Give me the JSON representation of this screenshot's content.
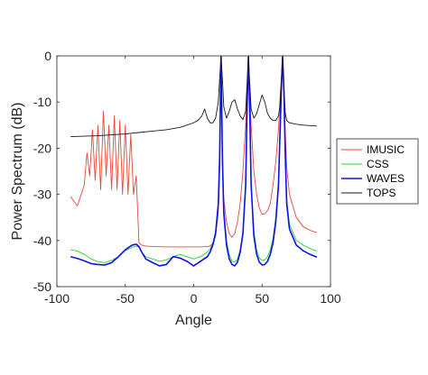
{
  "chart_data": {
    "type": "line",
    "title": "",
    "xlabel": "Angle",
    "ylabel": "Power Spectrum (dB)",
    "xlim": [
      -100,
      100
    ],
    "ylim": [
      -50,
      0
    ],
    "xticks": [
      -100,
      -50,
      0,
      50,
      100
    ],
    "yticks": [
      0,
      -10,
      -20,
      -30,
      -40,
      -50
    ],
    "grid": false,
    "legend_placement": "outside-right",
    "series": [
      {
        "name": "IMUSIC",
        "color": "#e8473a",
        "x": [
          -90,
          -85,
          -80,
          -78,
          -76,
          -74,
          -72,
          -70,
          -68,
          -66,
          -64,
          -62,
          -60,
          -58,
          -56,
          -54,
          -52,
          -50,
          -48,
          -46,
          -44,
          -42,
          -40,
          -38,
          -35,
          -30,
          -20,
          -10,
          0,
          5,
          10,
          12,
          14,
          16,
          18,
          19,
          20,
          21,
          22,
          24,
          26,
          28,
          30,
          32,
          34,
          36,
          38,
          39,
          40,
          41,
          42,
          44,
          46,
          48,
          50,
          52,
          54,
          56,
          58,
          60,
          62,
          63,
          64,
          65,
          66,
          67,
          68,
          70,
          75,
          80,
          85,
          90
        ],
        "y": [
          -30.5,
          -32.5,
          -28,
          -21,
          -26,
          -16,
          -27,
          -15,
          -29,
          -12,
          -26,
          -15,
          -29,
          -13,
          -29,
          -14,
          -30,
          -15,
          -30,
          -17,
          -30,
          -26,
          -40.5,
          -41,
          -41.2,
          -41.3,
          -41.4,
          -41.4,
          -41.4,
          -41.4,
          -41.3,
          -41.2,
          -40.5,
          -39,
          -34,
          -25,
          0,
          -24,
          -31,
          -36,
          -38.5,
          -39.3,
          -38.5,
          -36,
          -32,
          -25,
          -15,
          -8,
          0,
          -8,
          -15,
          -25,
          -30,
          -33,
          -34.3,
          -34.2,
          -33.5,
          -32,
          -28,
          -23,
          -16,
          -10,
          -5,
          -1,
          -7,
          -17,
          -24,
          -30,
          -35,
          -37,
          -37.8,
          -38.3
        ]
      },
      {
        "name": "CSS",
        "color": "#2ecc3a",
        "x": [
          -90,
          -85,
          -80,
          -75,
          -70,
          -65,
          -60,
          -55,
          -50,
          -45,
          -42,
          -40,
          -38,
          -35,
          -30,
          -25,
          -20,
          -15,
          -10,
          -5,
          0,
          5,
          10,
          12,
          14,
          16,
          18,
          19,
          20,
          21,
          22,
          24,
          26,
          28,
          30,
          32,
          34,
          36,
          38,
          39,
          40,
          41,
          42,
          44,
          46,
          48,
          50,
          52,
          54,
          56,
          58,
          60,
          62,
          63,
          64,
          65,
          66,
          67,
          68,
          70,
          75,
          80,
          85,
          90
        ],
        "y": [
          -42,
          -42.3,
          -43,
          -44,
          -44.6,
          -44.8,
          -44.3,
          -43.5,
          -42.2,
          -41.5,
          -41.2,
          -41.5,
          -42.5,
          -43.5,
          -44,
          -44.5,
          -44.2,
          -43.5,
          -43,
          -43.5,
          -44,
          -43.5,
          -42.5,
          -41.8,
          -40.5,
          -38,
          -32,
          -22,
          0,
          -22,
          -33,
          -40,
          -43,
          -44.5,
          -44.7,
          -44,
          -42,
          -38,
          -28,
          -12,
          0,
          -12,
          -28,
          -38,
          -42,
          -43.8,
          -44.3,
          -44.2,
          -43.5,
          -42,
          -39.5,
          -35,
          -27,
          -18,
          -8,
          0,
          -8,
          -22,
          -31,
          -36.5,
          -40,
          -41,
          -41.7,
          -42.3
        ]
      },
      {
        "name": "WAVES",
        "color": "#1010e8",
        "x": [
          -90,
          -85,
          -80,
          -75,
          -70,
          -65,
          -60,
          -55,
          -50,
          -45,
          -42,
          -40,
          -38,
          -35,
          -30,
          -25,
          -20,
          -15,
          -10,
          -5,
          0,
          5,
          10,
          12,
          14,
          16,
          18,
          19,
          20,
          21,
          22,
          24,
          26,
          28,
          30,
          32,
          34,
          36,
          38,
          39,
          40,
          41,
          42,
          44,
          46,
          48,
          50,
          52,
          54,
          56,
          58,
          60,
          62,
          63,
          64,
          65,
          66,
          67,
          68,
          70,
          75,
          80,
          85,
          90
        ],
        "y": [
          -43.5,
          -43.9,
          -44.4,
          -45,
          -45.2,
          -45.3,
          -44.8,
          -43.5,
          -42,
          -41,
          -40.8,
          -41.3,
          -42.5,
          -44,
          -44.8,
          -45.5,
          -45.2,
          -43.5,
          -43.8,
          -44.5,
          -45.5,
          -44.5,
          -43.5,
          -42.5,
          -41,
          -38.5,
          -32,
          -22,
          0,
          -22,
          -34,
          -41,
          -44,
          -45.2,
          -45.5,
          -44.7,
          -42.5,
          -38.5,
          -28,
          -12,
          0,
          -12,
          -28,
          -39,
          -43,
          -44.7,
          -45.3,
          -45.2,
          -44.5,
          -43,
          -40.5,
          -36,
          -28,
          -18,
          -8,
          0,
          -8,
          -22,
          -32,
          -37.5,
          -41,
          -42.2,
          -43,
          -43.6
        ]
      },
      {
        "name": "TOPS",
        "color": "#1a1a1a",
        "x": [
          -90,
          -80,
          -70,
          -60,
          -50,
          -40,
          -30,
          -20,
          -10,
          -5,
          0,
          3,
          6,
          8,
          10,
          12,
          14,
          16,
          18,
          19,
          20,
          21,
          22,
          24,
          26,
          28,
          30,
          32,
          34,
          36,
          38,
          39,
          40,
          41,
          42,
          44,
          46,
          48,
          50,
          52,
          54,
          56,
          58,
          60,
          62,
          63,
          64,
          65,
          66,
          67,
          68,
          70,
          75,
          80,
          85,
          90
        ],
        "y": [
          -17.5,
          -17.4,
          -17.3,
          -17.1,
          -16.9,
          -16.6,
          -16.3,
          -16,
          -15.5,
          -15,
          -14.5,
          -14,
          -13,
          -11.5,
          -13.5,
          -14.5,
          -14.5,
          -13.5,
          -10,
          -5,
          0,
          -5,
          -11,
          -13.5,
          -12,
          -10,
          -9.5,
          -11.5,
          -13,
          -13.8,
          -12,
          -6,
          0,
          -6,
          -11.5,
          -13.5,
          -12.5,
          -10.5,
          -8.5,
          -10,
          -12.5,
          -13.5,
          -14,
          -14,
          -13,
          -11,
          -6,
          0,
          -7,
          -12.5,
          -14,
          -14.5,
          -14.8,
          -15,
          -15.1,
          -15.2
        ]
      }
    ]
  }
}
